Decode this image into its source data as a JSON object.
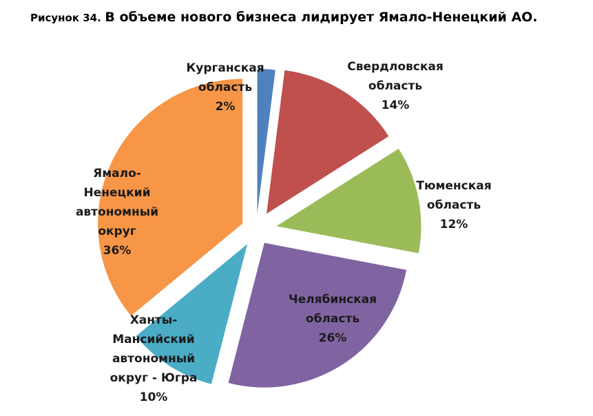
{
  "figure": {
    "prefix": "Рисунок 34.",
    "title": "В объеме нового бизнеса лидирует Ямало-Ненецкий АО."
  },
  "chart_data": {
    "type": "pie",
    "title": "В объеме нового бизнеса лидирует Ямало-Ненецкий АО.",
    "exploded": true,
    "slices": [
      {
        "label": "Курганская область",
        "label_lines": [
          "Курганская",
          "область",
          "2%"
        ],
        "value": 2,
        "color": "#4f81bd"
      },
      {
        "label": "Свердловская область",
        "label_lines": [
          "Свердловская",
          "область",
          "14%"
        ],
        "value": 14,
        "color": "#c0504d"
      },
      {
        "label": "Тюменская область",
        "label_lines": [
          "Тюменская",
          "область",
          "12%"
        ],
        "value": 12,
        "color": "#9bbb59"
      },
      {
        "label": "Челябинская область",
        "label_lines": [
          "Челябинская",
          "область",
          "26%"
        ],
        "value": 26,
        "color": "#8064a2"
      },
      {
        "label": "Ханты-Мансийский автономный округ - Югра",
        "label_lines": [
          "Ханты-",
          "Мансийский",
          "автономный",
          "округ - Югра",
          "10%"
        ],
        "value": 10,
        "color": "#4bacc6"
      },
      {
        "label": "Ямало-Ненецкий автономный округ",
        "label_lines": [
          "Ямало-",
          "Ненецкий",
          "автономный",
          "округ",
          "36%"
        ],
        "value": 36,
        "color": "#f79646"
      }
    ]
  }
}
